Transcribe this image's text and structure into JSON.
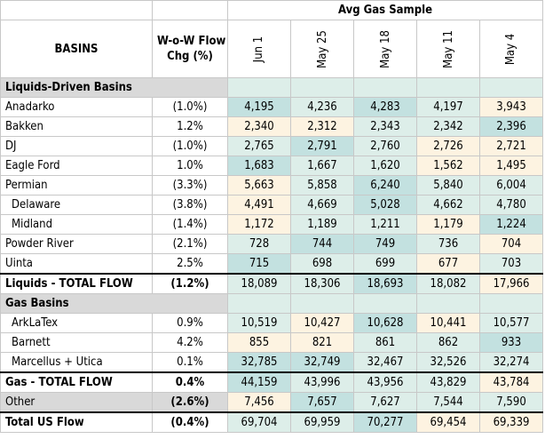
{
  "header": {
    "top_label": "Avg Gas Sample",
    "basins_label": "BASINS",
    "chg_label_line1": "W-o-W Flow",
    "chg_label_line2": "Chg (%)",
    "dates": [
      "Jun 1",
      "May 25",
      "May 18",
      "May 11",
      "May 4"
    ]
  },
  "colors": {
    "cream": "#fdf3e1",
    "light_teal": "#ddeee9",
    "mid_teal": "#c3e1e0",
    "dark_teal": "#a8d3d7",
    "section_grey": "#d9d9d9"
  },
  "rows": [
    {
      "type": "section",
      "name": "Liquids-Driven Basins"
    },
    {
      "type": "data",
      "name": "Anadarko",
      "chg": "(1.0%)",
      "values": [
        "4,195",
        "4,236",
        "4,283",
        "4,197",
        "3,943"
      ],
      "shade": [
        "mid",
        "light",
        "mid",
        "light",
        "cream"
      ]
    },
    {
      "type": "data",
      "name": "Bakken",
      "chg": "1.2%",
      "values": [
        "2,340",
        "2,312",
        "2,343",
        "2,342",
        "2,396"
      ],
      "shade": [
        "cream",
        "cream",
        "light",
        "light",
        "mid"
      ]
    },
    {
      "type": "data",
      "name": "DJ",
      "chg": "(1.0%)",
      "values": [
        "2,765",
        "2,791",
        "2,760",
        "2,726",
        "2,721"
      ],
      "shade": [
        "light",
        "mid",
        "light",
        "cream",
        "cream"
      ]
    },
    {
      "type": "data",
      "name": "Eagle Ford",
      "chg": "1.0%",
      "values": [
        "1,683",
        "1,667",
        "1,620",
        "1,562",
        "1,495"
      ],
      "shade": [
        "mid",
        "light",
        "light",
        "cream",
        "cream"
      ]
    },
    {
      "type": "data",
      "name": "Permian",
      "chg": "(3.3%)",
      "values": [
        "5,663",
        "5,858",
        "6,240",
        "5,840",
        "6,004"
      ],
      "shade": [
        "cream",
        "light",
        "mid",
        "light",
        "light"
      ]
    },
    {
      "type": "data",
      "name": "Delaware",
      "indent": true,
      "chg": "(3.8%)",
      "values": [
        "4,491",
        "4,669",
        "5,028",
        "4,662",
        "4,780"
      ],
      "shade": [
        "cream",
        "light",
        "mid",
        "light",
        "light"
      ]
    },
    {
      "type": "data",
      "name": "Midland",
      "indent": true,
      "chg": "(1.4%)",
      "values": [
        "1,172",
        "1,189",
        "1,211",
        "1,179",
        "1,224"
      ],
      "shade": [
        "cream",
        "light",
        "light",
        "cream",
        "mid"
      ]
    },
    {
      "type": "data",
      "name": "Powder River",
      "chg": "(2.1%)",
      "values": [
        "728",
        "744",
        "749",
        "736",
        "704"
      ],
      "shade": [
        "light",
        "mid",
        "mid",
        "light",
        "cream"
      ]
    },
    {
      "type": "data",
      "name": "Uinta",
      "chg": "2.5%",
      "values": [
        "715",
        "698",
        "699",
        "677",
        "703"
      ],
      "shade": [
        "mid",
        "light",
        "light",
        "cream",
        "light"
      ]
    },
    {
      "type": "total",
      "name": "Liquids - TOTAL FLOW",
      "chg": "(1.2%)",
      "values": [
        "18,089",
        "18,306",
        "18,693",
        "18,082",
        "17,966"
      ],
      "shade": [
        "light",
        "light",
        "mid",
        "light",
        "cream"
      ]
    },
    {
      "type": "section",
      "name": "Gas Basins"
    },
    {
      "type": "data",
      "name": "ArkLaTex",
      "indent": true,
      "chg": "0.9%",
      "values": [
        "10,519",
        "10,427",
        "10,628",
        "10,441",
        "10,577"
      ],
      "shade": [
        "light",
        "cream",
        "mid",
        "cream",
        "light"
      ]
    },
    {
      "type": "data",
      "name": "Barnett",
      "indent": true,
      "chg": "4.2%",
      "values": [
        "855",
        "821",
        "861",
        "862",
        "933"
      ],
      "shade": [
        "cream",
        "cream",
        "light",
        "light",
        "mid"
      ]
    },
    {
      "type": "data",
      "name": "Marcellus + Utica",
      "indent": true,
      "chg": "0.1%",
      "values": [
        "32,785",
        "32,749",
        "32,467",
        "32,526",
        "32,274"
      ],
      "shade": [
        "mid",
        "mid",
        "light",
        "light",
        "light"
      ]
    },
    {
      "type": "total",
      "name": "Gas - TOTAL FLOW",
      "chg": "0.4%",
      "values": [
        "44,159",
        "43,996",
        "43,956",
        "43,829",
        "43,784"
      ],
      "shade": [
        "mid",
        "light",
        "light",
        "light",
        "cream"
      ]
    },
    {
      "type": "grey",
      "name": "Other",
      "chg": "(2.6%)",
      "values": [
        "7,456",
        "7,657",
        "7,627",
        "7,544",
        "7,590"
      ],
      "shade": [
        "cream",
        "mid",
        "light",
        "light",
        "light"
      ]
    },
    {
      "type": "total",
      "name": "Total US Flow",
      "chg": "(0.4%)",
      "values": [
        "69,704",
        "69,959",
        "70,277",
        "69,454",
        "69,339"
      ],
      "shade": [
        "light",
        "light",
        "mid",
        "cream",
        "cream"
      ]
    }
  ]
}
